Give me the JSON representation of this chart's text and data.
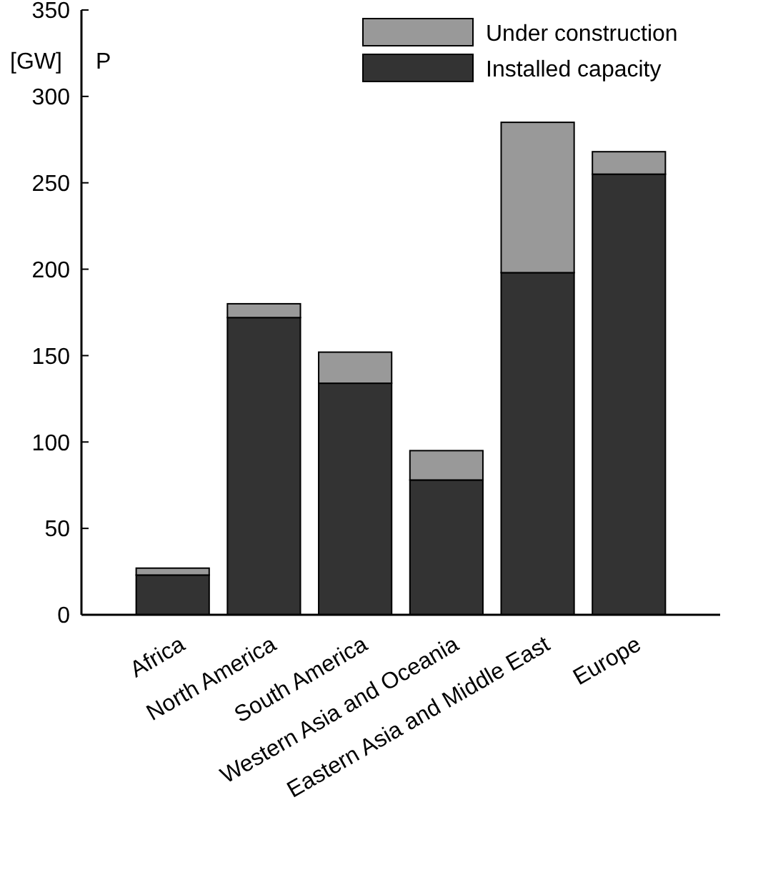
{
  "chart_data": {
    "type": "bar",
    "stacked": true,
    "ylabel": "[GW]",
    "annotations": [
      "P"
    ],
    "categories": [
      "Africa",
      "North America",
      "South America",
      "Western Asia and Oceania",
      "Eastern Asia and Middle East",
      "Europe"
    ],
    "series": [
      {
        "name": "Installed capacity",
        "color": "#333333",
        "values": [
          23,
          172,
          134,
          78,
          198,
          255
        ]
      },
      {
        "name": "Under construction",
        "color": "#999999",
        "values": [
          4,
          8,
          18,
          17,
          87,
          13
        ]
      }
    ],
    "ylim": [
      0,
      350
    ],
    "yticks": [
      0,
      50,
      100,
      150,
      200,
      250,
      300,
      350
    ],
    "grid": false,
    "legend": "top right"
  }
}
